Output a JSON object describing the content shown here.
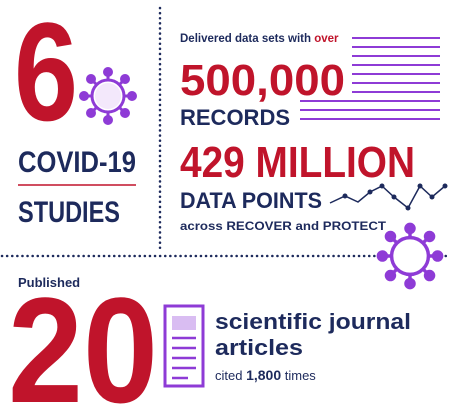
{
  "studies": {
    "number": "6",
    "label_line1": "COVID-19",
    "label_line2": "STUDIES"
  },
  "datasets": {
    "intro": "Delivered data sets with ",
    "intro_emphasis": "over",
    "records_value": "500,000",
    "records_label": "RECORDS",
    "points_value": "429 MILLION",
    "points_label": "DATA POINTS",
    "source": "across RECOVER and PROTECT"
  },
  "publications": {
    "intro": "Published",
    "number": "20",
    "label_line1": "scientific journal",
    "label_line2": "articles",
    "citations_prefix": "cited ",
    "citations_value": "1,800",
    "citations_suffix": " times"
  }
}
